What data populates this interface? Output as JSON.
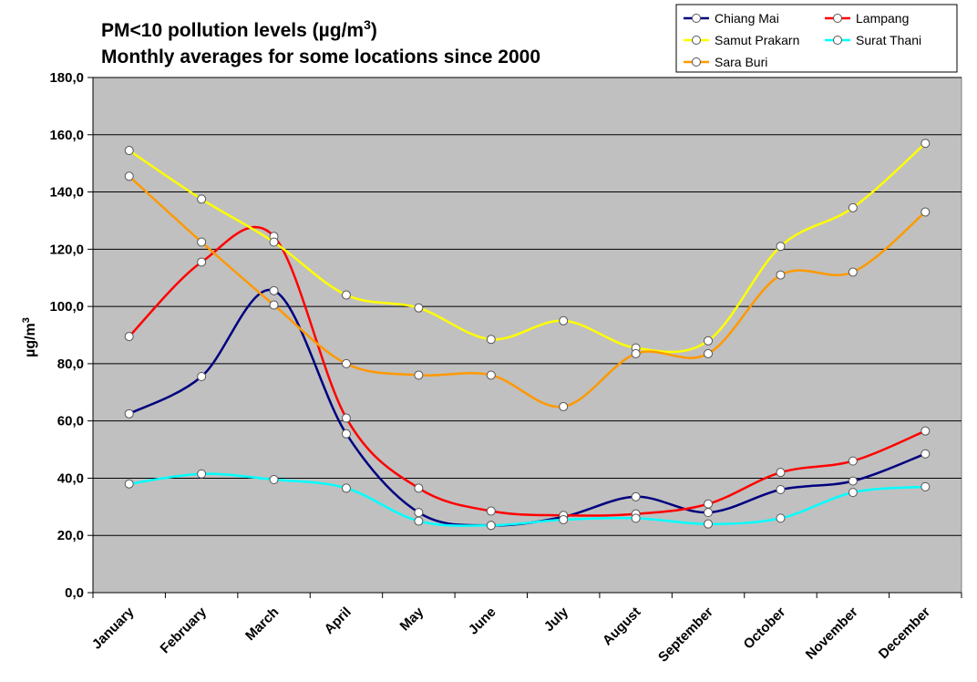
{
  "chart_data": {
    "type": "line",
    "title": "PM<10 pollution levels (µg/m3)",
    "title_parts": {
      "before": "PM<10 pollution levels (µg/m",
      "sup": "3",
      "after": ")"
    },
    "subtitle": "Monthly averages for some locations since 2000",
    "ylabel_parts": {
      "base": "µg/m",
      "sup": "3"
    },
    "xlabel": "",
    "categories": [
      "January",
      "February",
      "March",
      "April",
      "May",
      "June",
      "July",
      "August",
      "September",
      "October",
      "November",
      "December"
    ],
    "ylim": [
      0,
      180
    ],
    "yticks": [
      0,
      20,
      40,
      60,
      80,
      100,
      120,
      140,
      160,
      180
    ],
    "ytick_labels": [
      "0,0",
      "20,0",
      "40,0",
      "60,0",
      "80,0",
      "100,0",
      "120,0",
      "140,0",
      "160,0",
      "180,0"
    ],
    "grid": true,
    "legend_position": "top-right",
    "series": [
      {
        "name": "Chiang Mai",
        "color": "#000080",
        "values": [
          62.5,
          75.5,
          105.5,
          55.5,
          28.0,
          23.5,
          26.5,
          33.5,
          28.0,
          36.0,
          39.0,
          48.5
        ]
      },
      {
        "name": "Lampang",
        "color": "#ff0000",
        "values": [
          89.5,
          115.5,
          124.5,
          61.0,
          36.5,
          28.5,
          27.0,
          27.5,
          31.0,
          42.0,
          46.0,
          56.5
        ]
      },
      {
        "name": "Samut Prakarn",
        "color": "#ffff00",
        "values": [
          154.5,
          137.5,
          122.5,
          104.0,
          99.5,
          88.5,
          95.0,
          85.5,
          88.0,
          121.0,
          134.5,
          157.0
        ]
      },
      {
        "name": "Surat Thani",
        "color": "#00ffff",
        "values": [
          38.0,
          41.5,
          39.5,
          36.5,
          25.0,
          23.5,
          25.5,
          26.0,
          24.0,
          26.0,
          35.0,
          37.0
        ]
      },
      {
        "name": "Sara Buri",
        "color": "#ff9900",
        "values": [
          145.5,
          122.5,
          100.5,
          80.0,
          76.0,
          76.0,
          65.0,
          83.5,
          83.5,
          111.0,
          112.0,
          133.0
        ]
      }
    ]
  }
}
